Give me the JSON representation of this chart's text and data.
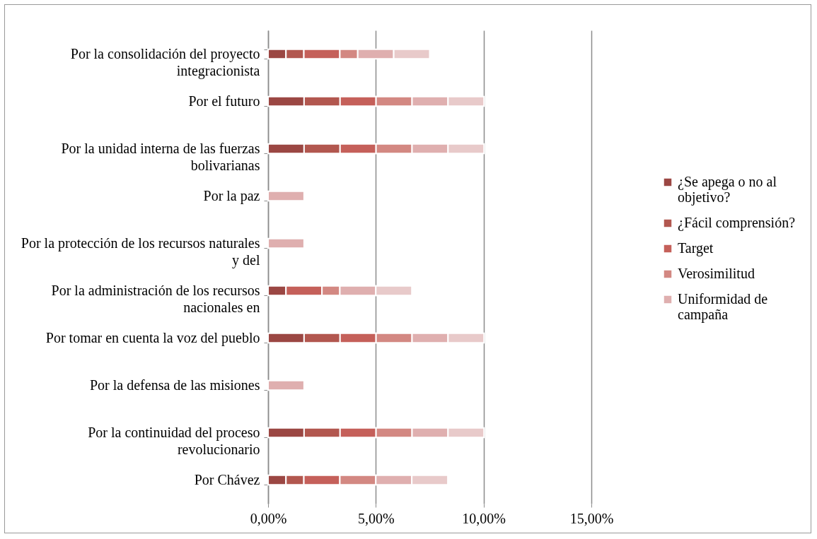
{
  "chart_data": {
    "type": "bar",
    "orientation": "horizontal",
    "stacked": true,
    "categories": [
      "Por la consolidación del proyecto integracionista",
      "Por el futuro",
      "Por la unidad interna de las fuerzas bolivarianas",
      "Por la paz",
      "Por la protección de los recursos naturales y del",
      "Por la administración de los recursos nacionales en",
      "Por tomar en cuenta la voz del pueblo",
      "Por la defensa de las misiones",
      "Por la continuidad del proceso revolucionario",
      "Por Chávez"
    ],
    "series": [
      {
        "name": "¿Se apega o no al objetivo?",
        "color": "#9b4743",
        "values": [
          0.83,
          1.67,
          1.67,
          null,
          null,
          0.83,
          1.67,
          null,
          1.67,
          0.83
        ]
      },
      {
        "name": "¿Fácil comprensión?",
        "color": "#b2574f",
        "values": [
          0.83,
          1.67,
          1.67,
          null,
          null,
          null,
          1.67,
          null,
          1.67,
          0.83
        ]
      },
      {
        "name": "Target",
        "color": "#c5605a",
        "values": [
          1.67,
          1.67,
          1.67,
          null,
          null,
          1.67,
          1.67,
          null,
          1.67,
          1.67
        ]
      },
      {
        "name": "Verosimilitud",
        "color": "#d38882",
        "values": [
          0.83,
          1.67,
          1.67,
          null,
          null,
          0.83,
          1.67,
          null,
          1.67,
          1.67
        ]
      },
      {
        "name": "Uniformidad de campaña",
        "color": "#dfafaf",
        "values": [
          1.67,
          1.67,
          1.67,
          1.67,
          1.67,
          1.67,
          1.67,
          1.67,
          1.67,
          1.67
        ]
      },
      {
        "color": "#e8caca",
        "values": [
          1.67,
          1.67,
          1.67,
          null,
          null,
          1.67,
          1.67,
          null,
          1.67,
          1.67
        ]
      }
    ],
    "xlim": [
      0,
      15
    ],
    "xticks": [
      {
        "value": 0,
        "label": "0,00%"
      },
      {
        "value": 5,
        "label": "5,00%"
      },
      {
        "value": 10,
        "label": "10,00%"
      },
      {
        "value": 15,
        "label": "15,00%"
      }
    ],
    "grid": "x",
    "legend": "right"
  }
}
